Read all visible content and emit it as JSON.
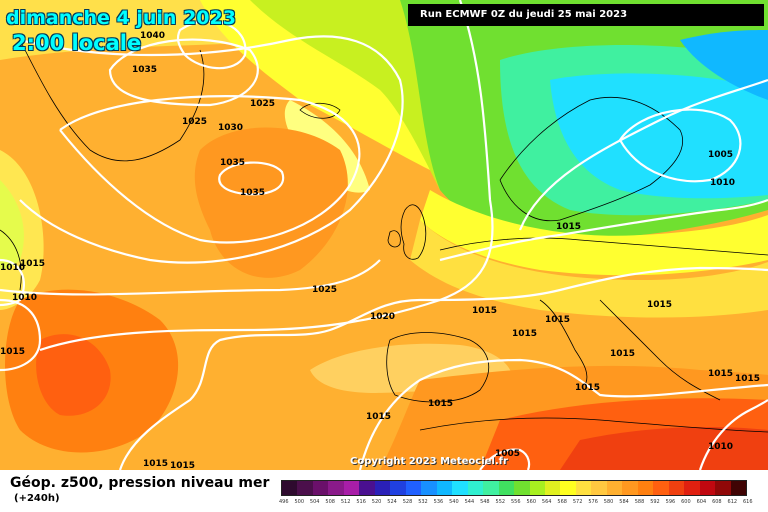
{
  "title": {
    "date": "dimanche 4 juin 2023",
    "time": "2:00 locale"
  },
  "run_info": "Run ECMWF 0Z du jeudi 25 mai 2023",
  "copyright": "Copyright 2023 Meteociel.fr",
  "parameter": "Géop. z500, pression niveau mer",
  "lead_time": "(+240h)",
  "isobar_labels": [
    "1040",
    "1035",
    "1025",
    "1030",
    "1035",
    "1035",
    "1025",
    "1015",
    "1010",
    "1010",
    "1015",
    "1025",
    "1020",
    "1015",
    "1015",
    "1015",
    "1015",
    "1015",
    "1015",
    "1015",
    "1015",
    "1015",
    "1015",
    "1005",
    "1010",
    "1015",
    "1010",
    "1005",
    "1015",
    "1015"
  ],
  "legend": {
    "values": [
      "496",
      "500",
      "504",
      "508",
      "512",
      "516",
      "520",
      "524",
      "528",
      "532",
      "536",
      "540",
      "544",
      "548",
      "552",
      "556",
      "560",
      "564",
      "568",
      "572",
      "576",
      "580",
      "584",
      "588",
      "592",
      "596",
      "600",
      "604",
      "608",
      "612",
      "616"
    ],
    "colors": [
      "#2e0a2e",
      "#4b0f4b",
      "#6a106a",
      "#8a1a8a",
      "#a81ea8",
      "#4a1090",
      "#2a20b8",
      "#2040e0",
      "#2060ff",
      "#1890ff",
      "#10b8ff",
      "#20e0ff",
      "#30f0d0",
      "#40f0a0",
      "#40e060",
      "#70e030",
      "#a8f020",
      "#e0f020",
      "#ffff20",
      "#ffe040",
      "#ffc840",
      "#ffb030",
      "#ff9820",
      "#ff8010",
      "#ff6010",
      "#f04010",
      "#e02010",
      "#c00810",
      "#900808",
      "#400404"
    ]
  }
}
